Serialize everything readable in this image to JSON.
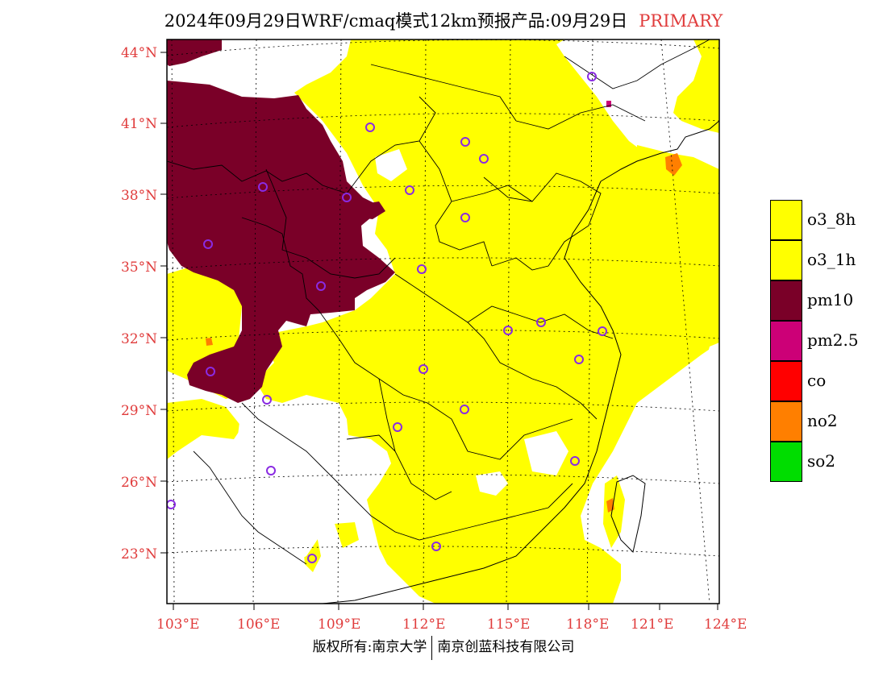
{
  "title": {
    "main": "2024年09月29日WRF/cmaq模式12km预报产品:09月29日",
    "tag": "PRIMARY"
  },
  "colors": {
    "o3_8h": "#ffff00",
    "o3_1h": "#ffff00",
    "pm10": "#7a0028",
    "pm2_5": "#cc0077",
    "co": "#ff0000",
    "no2": "#ff7f00",
    "so2": "#00dd00",
    "label": "#e03c3c"
  },
  "axes": {
    "lat_labels": [
      "44°N",
      "41°N",
      "38°N",
      "35°N",
      "32°N",
      "29°N",
      "26°N",
      "23°N"
    ],
    "lon_labels": [
      "103°E",
      "106°E",
      "109°E",
      "112°E",
      "115°E",
      "118°E",
      "121°E",
      "124°E"
    ]
  },
  "legend": [
    {
      "label": "o3_8h",
      "color": "#ffff00"
    },
    {
      "label": "o3_1h",
      "color": "#ffff00"
    },
    {
      "label": "pm10",
      "color": "#7a0028"
    },
    {
      "label": "pm2.5",
      "color": "#cc0077"
    },
    {
      "label": "co",
      "color": "#ff0000"
    },
    {
      "label": "no2",
      "color": "#ff7f00"
    },
    {
      "label": "so2",
      "color": "#00dd00"
    }
  ],
  "footer": {
    "left": "版权所有:南京大学",
    "right": "南京创蓝科技有限公司"
  },
  "map": {
    "station_marker": "circle",
    "station_count": 26
  }
}
